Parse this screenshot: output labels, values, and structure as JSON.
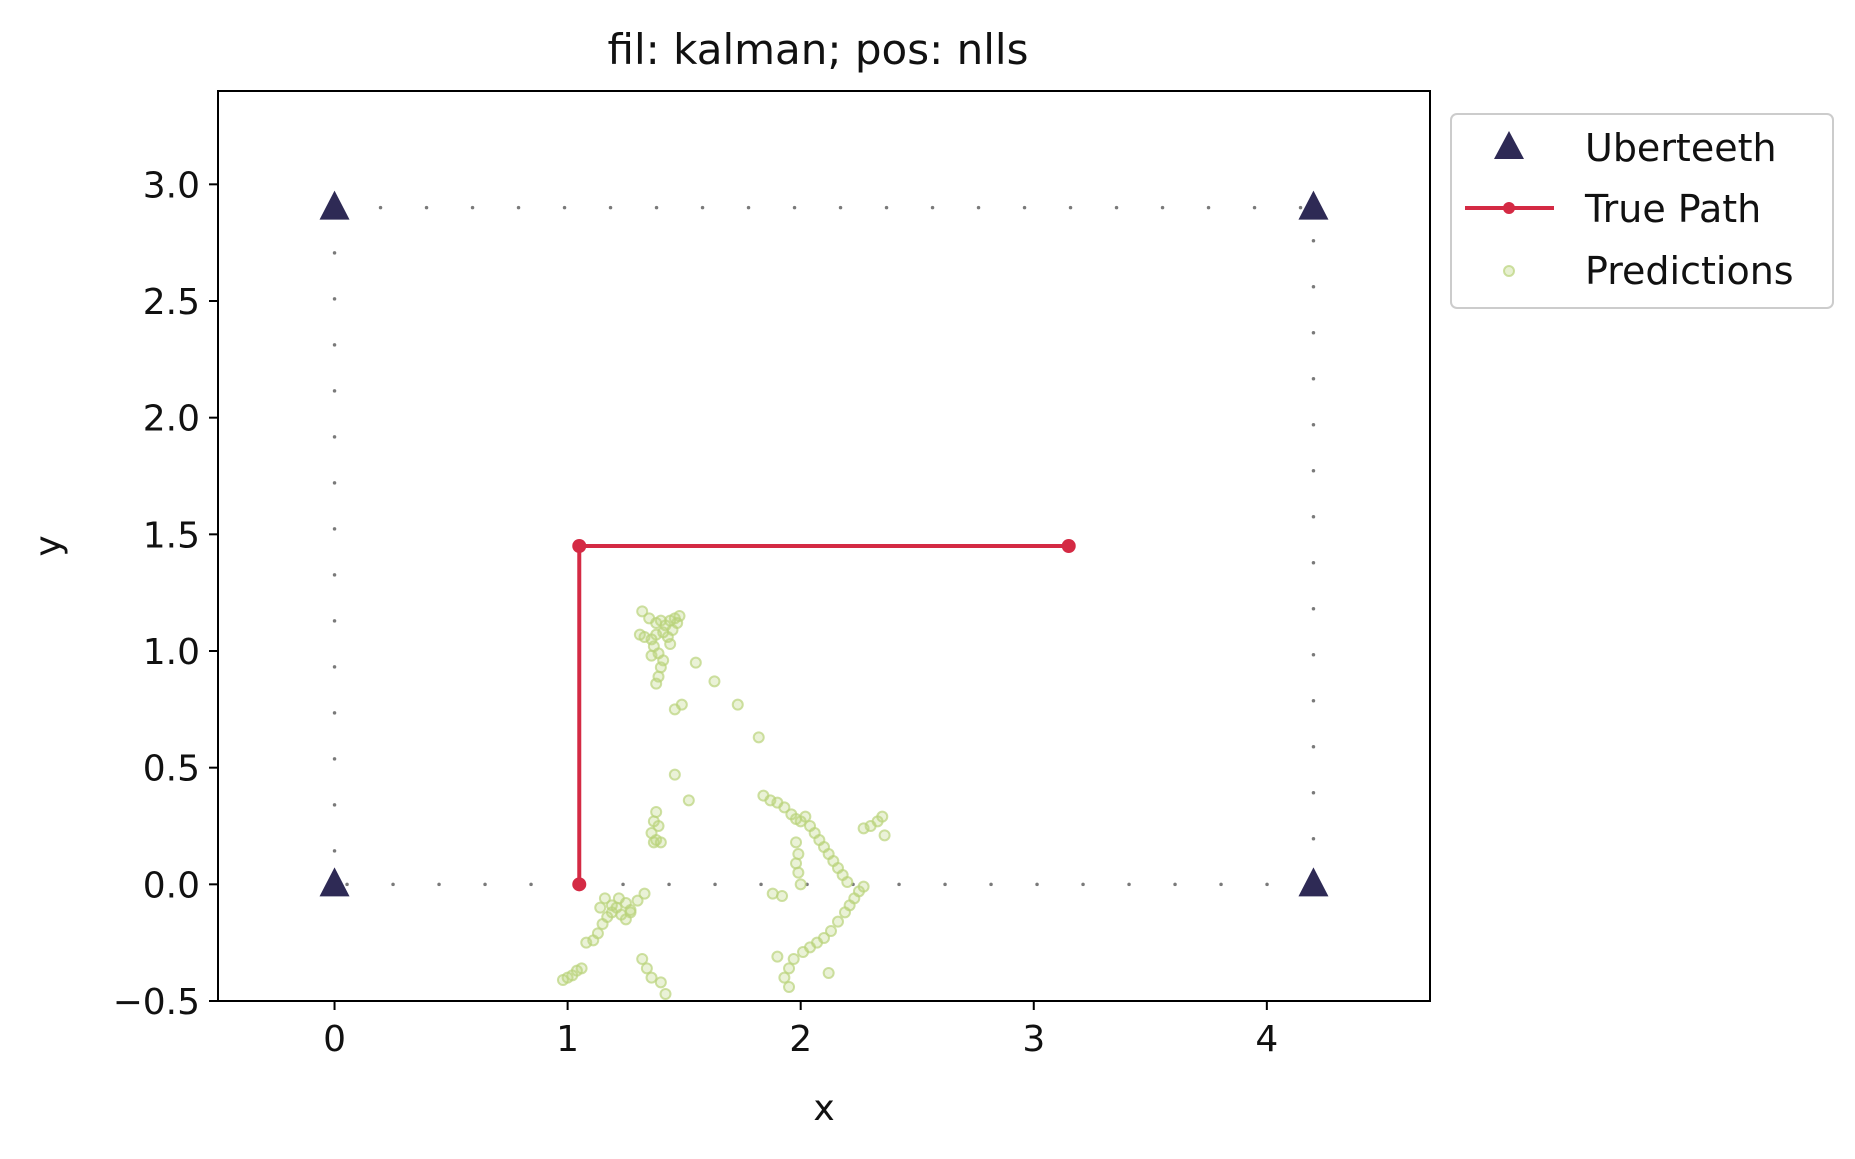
{
  "chart_data": {
    "type": "scatter",
    "title": "fil: kalman; pos: nlls",
    "xlabel": "x",
    "ylabel": "y",
    "xlim": [
      -0.5,
      4.7
    ],
    "ylim": [
      -0.5,
      3.4
    ],
    "xticks": [
      0,
      1,
      2,
      3,
      4
    ],
    "yticks": [
      3.0,
      2.5,
      2.0,
      1.5,
      1.0,
      0.5,
      0.0,
      -0.5
    ],
    "xtick_labels": [
      "0",
      "1",
      "2",
      "3",
      "4"
    ],
    "ytick_labels": [
      "3.0",
      "2.5",
      "2.0",
      "1.5",
      "1.0",
      "0.5",
      "0.0",
      "−0.5"
    ],
    "grid": false,
    "legend_position": "outside-top-right",
    "colors": {
      "uberteeth": "#2e2a55",
      "true_path": "#d42a44",
      "predictions": "#b9d37a",
      "boundary": "#7a7a7a"
    },
    "boundary": [
      [
        0,
        2.9
      ],
      [
        4.2,
        2.9
      ],
      [
        4.2,
        0
      ],
      [
        0,
        0
      ],
      [
        0,
        2.9
      ]
    ],
    "series": [
      {
        "name": "Uberteeth",
        "marker": "triangle",
        "points": [
          [
            0,
            2.9
          ],
          [
            4.2,
            2.9
          ],
          [
            0,
            0
          ],
          [
            4.2,
            0
          ]
        ]
      },
      {
        "name": "True Path",
        "marker": "line-dot",
        "points": [
          [
            1.05,
            0
          ],
          [
            1.05,
            1.45
          ],
          [
            3.15,
            1.45
          ]
        ]
      },
      {
        "name": "Predictions",
        "marker": "dot",
        "points": [
          [
            1.32,
            1.17
          ],
          [
            1.35,
            1.14
          ],
          [
            1.38,
            1.12
          ],
          [
            1.4,
            1.13
          ],
          [
            1.42,
            1.11
          ],
          [
            1.44,
            1.13
          ],
          [
            1.46,
            1.14
          ],
          [
            1.48,
            1.15
          ],
          [
            1.31,
            1.07
          ],
          [
            1.33,
            1.06
          ],
          [
            1.36,
            1.05
          ],
          [
            1.38,
            1.07
          ],
          [
            1.41,
            1.08
          ],
          [
            1.43,
            1.06
          ],
          [
            1.37,
            1.02
          ],
          [
            1.39,
            0.99
          ],
          [
            1.36,
            0.98
          ],
          [
            1.41,
            0.96
          ],
          [
            1.4,
            0.93
          ],
          [
            1.39,
            0.89
          ],
          [
            1.38,
            0.86
          ],
          [
            1.44,
            1.03
          ],
          [
            1.45,
            1.09
          ],
          [
            1.47,
            1.12
          ],
          [
            1.55,
            0.95
          ],
          [
            1.63,
            0.87
          ],
          [
            1.46,
            0.75
          ],
          [
            1.49,
            0.77
          ],
          [
            1.73,
            0.77
          ],
          [
            1.82,
            0.63
          ],
          [
            1.46,
            0.47
          ],
          [
            1.52,
            0.36
          ],
          [
            1.38,
            0.31
          ],
          [
            1.37,
            0.27
          ],
          [
            1.39,
            0.25
          ],
          [
            1.36,
            0.22
          ],
          [
            1.38,
            0.19
          ],
          [
            1.4,
            0.18
          ],
          [
            1.37,
            0.18
          ],
          [
            1.84,
            0.38
          ],
          [
            1.87,
            0.36
          ],
          [
            1.9,
            0.35
          ],
          [
            1.93,
            0.33
          ],
          [
            1.96,
            0.3
          ],
          [
            1.98,
            0.28
          ],
          [
            2.0,
            0.27
          ],
          [
            2.02,
            0.29
          ],
          [
            2.04,
            0.25
          ],
          [
            2.06,
            0.22
          ],
          [
            2.08,
            0.19
          ],
          [
            2.1,
            0.16
          ],
          [
            2.12,
            0.13
          ],
          [
            2.14,
            0.1
          ],
          [
            2.16,
            0.07
          ],
          [
            2.18,
            0.04
          ],
          [
            2.2,
            0.01
          ],
          [
            1.98,
            0.18
          ],
          [
            1.99,
            0.13
          ],
          [
            1.98,
            0.09
          ],
          [
            1.99,
            0.05
          ],
          [
            2.0,
            0.0
          ],
          [
            1.88,
            -0.04
          ],
          [
            1.92,
            -0.05
          ],
          [
            2.27,
            0.24
          ],
          [
            2.3,
            0.25
          ],
          [
            2.33,
            0.27
          ],
          [
            2.35,
            0.29
          ],
          [
            2.36,
            0.21
          ],
          [
            2.27,
            -0.01
          ],
          [
            2.25,
            -0.03
          ],
          [
            2.23,
            -0.06
          ],
          [
            2.21,
            -0.09
          ],
          [
            2.19,
            -0.12
          ],
          [
            2.16,
            -0.16
          ],
          [
            2.13,
            -0.2
          ],
          [
            2.1,
            -0.23
          ],
          [
            2.07,
            -0.25
          ],
          [
            2.04,
            -0.27
          ],
          [
            2.01,
            -0.29
          ],
          [
            1.97,
            -0.32
          ],
          [
            1.95,
            -0.36
          ],
          [
            1.9,
            -0.31
          ],
          [
            1.93,
            -0.4
          ],
          [
            1.95,
            -0.44
          ],
          [
            2.12,
            -0.38
          ],
          [
            0.98,
            -0.41
          ],
          [
            1.0,
            -0.4
          ],
          [
            1.02,
            -0.39
          ],
          [
            1.04,
            -0.37
          ],
          [
            1.06,
            -0.36
          ],
          [
            1.08,
            -0.25
          ],
          [
            1.11,
            -0.24
          ],
          [
            1.13,
            -0.21
          ],
          [
            1.15,
            -0.17
          ],
          [
            1.17,
            -0.14
          ],
          [
            1.19,
            -0.12
          ],
          [
            1.21,
            -0.1
          ],
          [
            1.23,
            -0.13
          ],
          [
            1.25,
            -0.15
          ],
          [
            1.27,
            -0.12
          ],
          [
            1.22,
            -0.06
          ],
          [
            1.25,
            -0.08
          ],
          [
            1.27,
            -0.11
          ],
          [
            1.3,
            -0.07
          ],
          [
            1.33,
            -0.04
          ],
          [
            1.32,
            -0.32
          ],
          [
            1.34,
            -0.36
          ],
          [
            1.36,
            -0.4
          ],
          [
            1.4,
            -0.42
          ],
          [
            1.42,
            -0.47
          ],
          [
            1.16,
            -0.06
          ],
          [
            1.19,
            -0.09
          ],
          [
            1.14,
            -0.1
          ]
        ]
      }
    ]
  }
}
